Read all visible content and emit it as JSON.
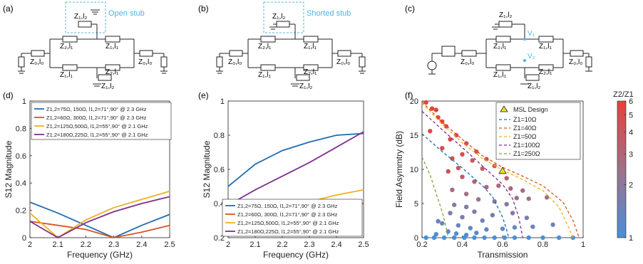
{
  "panels": {
    "a": {
      "label": "(a)",
      "title": "Open stub",
      "stub": "Z₁,l₂",
      "arm_top_left": "Z₂,l₁",
      "arm_top_right": "Z₁,l₁",
      "arm_bot_left": "Z₁,l₁",
      "arm_bot_right": "Z₂,l₁",
      "port_left": "Z₀,l₀",
      "port_right": "Z₀,l₀",
      "stub_bottom": "Z₁,l₂"
    },
    "b": {
      "label": "(b)",
      "title": "Shorted stub",
      "stub": "Z₁,l₂",
      "arm_top_left": "Z₂,l₁",
      "arm_top_right": "Z₁,l₁",
      "arm_bot_left": "Z₁,l₁",
      "arm_bot_right": "Z₂,l₁",
      "port_left": "Z₀,l₀",
      "port_right": "Z₀,l₀",
      "stub_bottom": "Z₁,l₂"
    },
    "c": {
      "label": "(c)",
      "stub": "Z₁,l₂",
      "arm_top_left": "Z₂,l₁",
      "arm_top_right": "Z₁,l₁",
      "arm_bot_left": "Z₁,l₁",
      "arm_bot_right": "Z₂,l₁",
      "port_left": "Z₀,l₀",
      "port_right": "Z₀,l₀",
      "stub_bottom": "Z₁,l₂",
      "v1": "V₁",
      "v2": "V₂"
    },
    "d": {
      "label": "(d)"
    },
    "e": {
      "label": "(e)"
    },
    "f": {
      "label": "(f)"
    }
  },
  "chart_data": [
    {
      "id": "d",
      "type": "line",
      "xlabel": "Frequency (GHz)",
      "ylabel": "S12 Magnitude",
      "xlim": [
        2,
        2.5
      ],
      "ylim": [
        0,
        1
      ],
      "xticks": [
        "2",
        "2.1",
        "2.2",
        "2.3",
        "2.4",
        "2.5"
      ],
      "yticks": [
        "0",
        "0.2",
        "0.4",
        "0.6",
        "0.8",
        "1"
      ],
      "legend_position": "top-left",
      "series": [
        {
          "name": "Z1,2=75Ω,  150Ω, l1,2=71°,90° @ 2.3 GHz",
          "color": "#1f6eb4",
          "x": [
            2,
            2.1,
            2.2,
            2.3,
            2.4,
            2.5
          ],
          "y": [
            0.26,
            0.18,
            0.09,
            0.0,
            0.09,
            0.17
          ]
        },
        {
          "name": "Z1,2=60Ω,  300Ω, l1,2=71°,90° @ 2.3 GHz",
          "color": "#d9541e",
          "x": [
            2,
            2.1,
            2.2,
            2.3,
            2.4,
            2.5
          ],
          "y": [
            0.12,
            0.09,
            0.06,
            0.0,
            0.04,
            0.09
          ]
        },
        {
          "name": "Z1,2=125Ω,500Ω, l1,2=55°,90° @ 2.1 GHz",
          "color": "#eeb11f",
          "x": [
            2,
            2.1,
            2.2,
            2.3,
            2.4,
            2.5
          ],
          "y": [
            0.18,
            0.0,
            0.13,
            0.22,
            0.28,
            0.34
          ]
        },
        {
          "name": "Z1,2=180Ω,225Ω, l1,2=55°,90° @ 2.1 GHz",
          "color": "#7e2f8e",
          "x": [
            2,
            2.1,
            2.2,
            2.3,
            2.4,
            2.5
          ],
          "y": [
            0.12,
            0.0,
            0.11,
            0.19,
            0.25,
            0.3
          ]
        }
      ]
    },
    {
      "id": "e",
      "type": "line",
      "xlabel": "Frequency (GHz)",
      "ylabel": "S12 Magnitude",
      "xlim": [
        2,
        2.5
      ],
      "ylim": [
        0.2,
        1
      ],
      "xticks": [
        "2",
        "2.1",
        "2.2",
        "2.3",
        "2.4",
        "2.5"
      ],
      "yticks": [
        "0.2",
        "0.4",
        "0.6",
        "0.8",
        "1"
      ],
      "legend_position": "bottom-right",
      "series": [
        {
          "name": "Z1,2=75Ω,  150Ω, l1,2=71°,90° @ 2.3 GHz",
          "color": "#1f6eb4",
          "x": [
            2,
            2.1,
            2.2,
            2.3,
            2.4,
            2.5
          ],
          "y": [
            0.5,
            0.63,
            0.71,
            0.76,
            0.8,
            0.81
          ]
        },
        {
          "name": "Z1,2=60Ω,  300Ω, l1,2=71°,90° @ 2.3 GHz",
          "color": "#d9541e",
          "x": [
            2,
            2.1,
            2.2,
            2.3,
            2.4,
            2.5
          ],
          "y": [
            0.26,
            0.32,
            0.36,
            0.38,
            0.4,
            0.4
          ]
        },
        {
          "name": "Z1,2=125Ω,500Ω, l1,2=55°,90° @ 2.1 GHz",
          "color": "#eeb11f",
          "x": [
            2,
            2.1,
            2.2,
            2.3,
            2.4,
            2.5
          ],
          "y": [
            0.26,
            0.32,
            0.37,
            0.41,
            0.45,
            0.48
          ]
        },
        {
          "name": "Z1,2=180Ω,225Ω, l1,2=55°,90° @ 2.1 GHz",
          "color": "#7e2f8e",
          "x": [
            2,
            2.1,
            2.2,
            2.3,
            2.4,
            2.5
          ],
          "y": [
            0.39,
            0.48,
            0.56,
            0.64,
            0.73,
            0.82
          ]
        }
      ]
    },
    {
      "id": "f",
      "type": "scatter",
      "xlabel": "Transmission",
      "ylabel": "Field Asymmtry (dB)",
      "xlim": [
        0.2,
        1
      ],
      "ylim": [
        0,
        20
      ],
      "xticks": [
        "0.2",
        "0.4",
        "0.6",
        "0.8",
        "1"
      ],
      "yticks": [
        "0",
        "5",
        "10",
        "15",
        "20"
      ],
      "colorbar": {
        "label": "Z2/Z1",
        "ticks": [
          "1",
          "2",
          "3",
          "4",
          "5",
          "6"
        ],
        "range": [
          1,
          6
        ],
        "low_color": "#4a90d9",
        "high_color": "#e8413a"
      },
      "marker_label": "MSL Design",
      "marker_point": {
        "x": 0.6,
        "y": 9.8
      },
      "legend_position": "top-right",
      "lines": [
        {
          "name": "Z1=10Ω",
          "color": "#1f6eb4",
          "x": [
            0.2,
            0.3,
            0.4,
            0.5,
            0.55,
            0.6,
            0.62,
            0.63
          ],
          "y": [
            15.2,
            12.6,
            10.2,
            7.6,
            6.0,
            3.0,
            1.2,
            0.0
          ]
        },
        {
          "name": "Z1=40Ω",
          "color": "#d9541e",
          "x": [
            0.2,
            0.3,
            0.4,
            0.5,
            0.6,
            0.7,
            0.8,
            0.9,
            0.95,
            0.98
          ],
          "y": [
            19.9,
            16.9,
            14.4,
            12.0,
            10.3,
            9.0,
            7.6,
            5.2,
            2.5,
            0.0
          ]
        },
        {
          "name": "Z1=50Ω",
          "color": "#eeb11f",
          "x": [
            0.2,
            0.3,
            0.4,
            0.5,
            0.6,
            0.7,
            0.8,
            0.88,
            0.92,
            0.95
          ],
          "y": [
            19.7,
            16.6,
            13.9,
            11.6,
            9.9,
            8.5,
            6.9,
            4.5,
            2.0,
            0.0
          ]
        },
        {
          "name": "Z1=100Ω",
          "color": "#7e2f8e",
          "x": [
            0.2,
            0.3,
            0.4,
            0.5,
            0.6,
            0.65,
            0.68,
            0.7
          ],
          "y": [
            18.5,
            15.8,
            13.2,
            10.5,
            7.8,
            5.7,
            3.0,
            0.0
          ]
        },
        {
          "name": "Z1=250Ω",
          "color": "#77ac30",
          "x": [
            0.2,
            0.24,
            0.27,
            0.3,
            0.32,
            0.33
          ],
          "y": [
            11.8,
            9.2,
            6.5,
            3.8,
            1.5,
            0.0
          ]
        }
      ],
      "points": [
        {
          "x": 0.22,
          "y": 19.8,
          "c": 6.0
        },
        {
          "x": 0.25,
          "y": 18.9,
          "c": 5.8
        },
        {
          "x": 0.28,
          "y": 17.6,
          "c": 5.6
        },
        {
          "x": 0.32,
          "y": 16.3,
          "c": 5.4
        },
        {
          "x": 0.37,
          "y": 15.0,
          "c": 5.2
        },
        {
          "x": 0.42,
          "y": 13.8,
          "c": 5.0
        },
        {
          "x": 0.47,
          "y": 12.6,
          "c": 4.6
        },
        {
          "x": 0.52,
          "y": 11.5,
          "c": 4.4
        },
        {
          "x": 0.56,
          "y": 10.5,
          "c": 4.2
        },
        {
          "x": 0.27,
          "y": 18.7,
          "c": 5.9
        },
        {
          "x": 0.3,
          "y": 17.0,
          "c": 5.7
        },
        {
          "x": 0.34,
          "y": 14.4,
          "c": 5.1
        },
        {
          "x": 0.4,
          "y": 12.2,
          "c": 4.9
        },
        {
          "x": 0.45,
          "y": 11.3,
          "c": 4.0
        },
        {
          "x": 0.5,
          "y": 10.1,
          "c": 3.6
        },
        {
          "x": 0.24,
          "y": 15.6,
          "c": 5.5
        },
        {
          "x": 0.3,
          "y": 13.1,
          "c": 4.8
        },
        {
          "x": 0.35,
          "y": 11.6,
          "c": 4.5
        },
        {
          "x": 0.38,
          "y": 10.2,
          "c": 3.8
        },
        {
          "x": 0.33,
          "y": 9.7,
          "c": 4.3
        },
        {
          "x": 0.4,
          "y": 8.9,
          "c": 3.5
        },
        {
          "x": 0.46,
          "y": 8.2,
          "c": 3.2
        },
        {
          "x": 0.52,
          "y": 7.4,
          "c": 3.0
        },
        {
          "x": 0.58,
          "y": 7.6,
          "c": 2.9
        },
        {
          "x": 0.62,
          "y": 8.7,
          "c": 3.3
        },
        {
          "x": 0.64,
          "y": 7.2,
          "c": 3.0
        },
        {
          "x": 0.7,
          "y": 6.9,
          "c": 2.6
        },
        {
          "x": 0.67,
          "y": 5.8,
          "c": 2.5
        },
        {
          "x": 0.73,
          "y": 5.7,
          "c": 2.3
        },
        {
          "x": 0.82,
          "y": 5.9,
          "c": 2.4
        },
        {
          "x": 0.35,
          "y": 7.0,
          "c": 2.7
        },
        {
          "x": 0.42,
          "y": 6.4,
          "c": 2.5
        },
        {
          "x": 0.48,
          "y": 5.6,
          "c": 2.2
        },
        {
          "x": 0.56,
          "y": 5.3,
          "c": 2.1
        },
        {
          "x": 0.62,
          "y": 4.9,
          "c": 1.9
        },
        {
          "x": 0.42,
          "y": 4.5,
          "c": 1.8
        },
        {
          "x": 0.36,
          "y": 4.8,
          "c": 1.9
        },
        {
          "x": 0.46,
          "y": 3.8,
          "c": 1.7
        },
        {
          "x": 0.55,
          "y": 3.3,
          "c": 1.6
        },
        {
          "x": 0.5,
          "y": 2.5,
          "c": 1.5
        },
        {
          "x": 0.4,
          "y": 3.0,
          "c": 1.6
        },
        {
          "x": 0.34,
          "y": 3.6,
          "c": 1.7
        },
        {
          "x": 0.3,
          "y": 2.1,
          "c": 1.4
        },
        {
          "x": 0.28,
          "y": 2.4,
          "c": 1.4
        },
        {
          "x": 0.38,
          "y": 1.8,
          "c": 1.3
        },
        {
          "x": 0.44,
          "y": 1.4,
          "c": 1.3
        },
        {
          "x": 0.52,
          "y": 1.2,
          "c": 1.2
        },
        {
          "x": 0.6,
          "y": 1.3,
          "c": 1.3
        },
        {
          "x": 0.66,
          "y": 1.5,
          "c": 1.3
        },
        {
          "x": 0.75,
          "y": 1.6,
          "c": 1.4
        },
        {
          "x": 0.85,
          "y": 1.9,
          "c": 1.5
        },
        {
          "x": 0.72,
          "y": 2.9,
          "c": 1.6
        },
        {
          "x": 0.65,
          "y": 3.6,
          "c": 1.8
        },
        {
          "x": 0.33,
          "y": 0.9,
          "c": 1.2
        },
        {
          "x": 0.37,
          "y": 0.6,
          "c": 1.1
        },
        {
          "x": 0.42,
          "y": 0.4,
          "c": 1.1
        },
        {
          "x": 0.47,
          "y": 0.7,
          "c": 1.2
        },
        {
          "x": 0.27,
          "y": 0.5,
          "c": 1.1
        },
        {
          "x": 0.22,
          "y": 0.0,
          "c": 1.0
        },
        {
          "x": 0.26,
          "y": 0.0,
          "c": 1.0
        },
        {
          "x": 0.31,
          "y": 0.0,
          "c": 1.0
        },
        {
          "x": 0.36,
          "y": 0.0,
          "c": 1.0
        },
        {
          "x": 0.41,
          "y": 0.0,
          "c": 1.0
        },
        {
          "x": 0.46,
          "y": 0.0,
          "c": 1.0
        },
        {
          "x": 0.51,
          "y": 0.0,
          "c": 1.0
        },
        {
          "x": 0.56,
          "y": 0.0,
          "c": 1.0
        },
        {
          "x": 0.61,
          "y": 0.0,
          "c": 1.0
        },
        {
          "x": 0.66,
          "y": 0.0,
          "c": 1.0
        },
        {
          "x": 0.73,
          "y": 0.0,
          "c": 1.0
        },
        {
          "x": 0.8,
          "y": 0.0,
          "c": 1.0
        },
        {
          "x": 0.88,
          "y": 0.0,
          "c": 1.0
        },
        {
          "x": 0.95,
          "y": 0.0,
          "c": 1.0
        }
      ]
    }
  ]
}
